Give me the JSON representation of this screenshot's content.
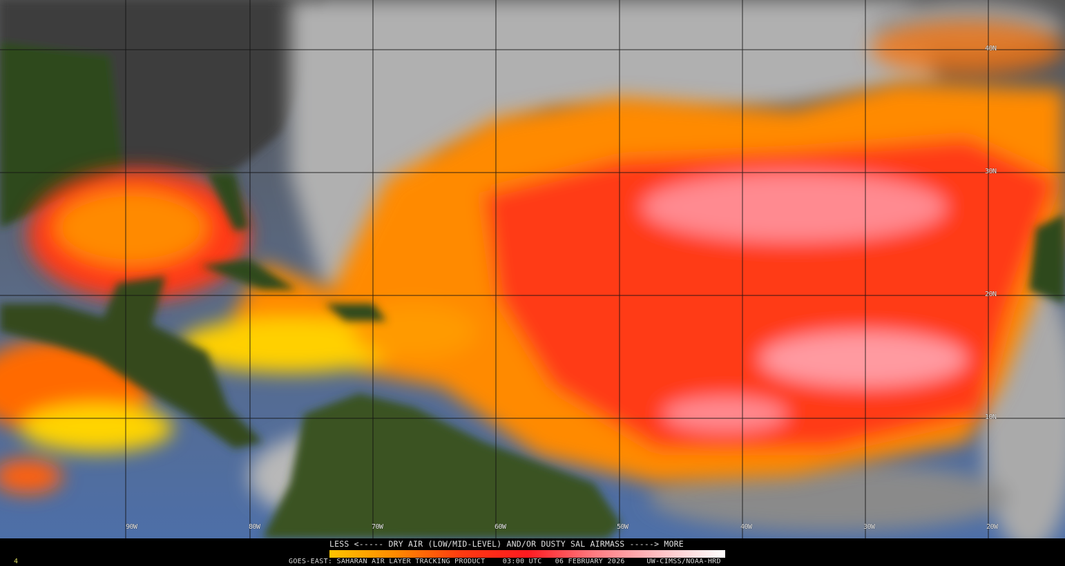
{
  "map": {
    "longitude_labels": [
      "90W",
      "80W",
      "70W",
      "60W",
      "50W",
      "40W",
      "30W",
      "20W"
    ],
    "latitude_labels": [
      "40N",
      "30N",
      "20N",
      "10N"
    ],
    "colors": {
      "ocean": "#4d6fa8",
      "land": "#2f4a1c",
      "land_dark": "#3a3a3a",
      "cloud": "#a8a8a8",
      "sal_yellow": "#ffd400",
      "sal_orange": "#ff8a00",
      "sal_red": "#ff2a10",
      "sal_pink": "#ff9aa0"
    }
  },
  "legend": {
    "title": "LESS <----- DRY AIR (LOW/MID-LEVEL) AND/OR DUSTY SAL AIRMASS -----> MORE",
    "colorbar_stops": [
      "#ffc400",
      "#ff8a00",
      "#ff3a10",
      "#ff1a20",
      "#ff7a80",
      "#ffc0c4",
      "#ffffff"
    ]
  },
  "footer": {
    "frame_number": "4",
    "product": "GOES-EAST: SAHARAN AIR LAYER TRACKING PRODUCT",
    "time": "03:00 UTC",
    "date": "06 FEBRUARY 2026",
    "credit": "UW-CIMSS/NOAA-HRD"
  }
}
